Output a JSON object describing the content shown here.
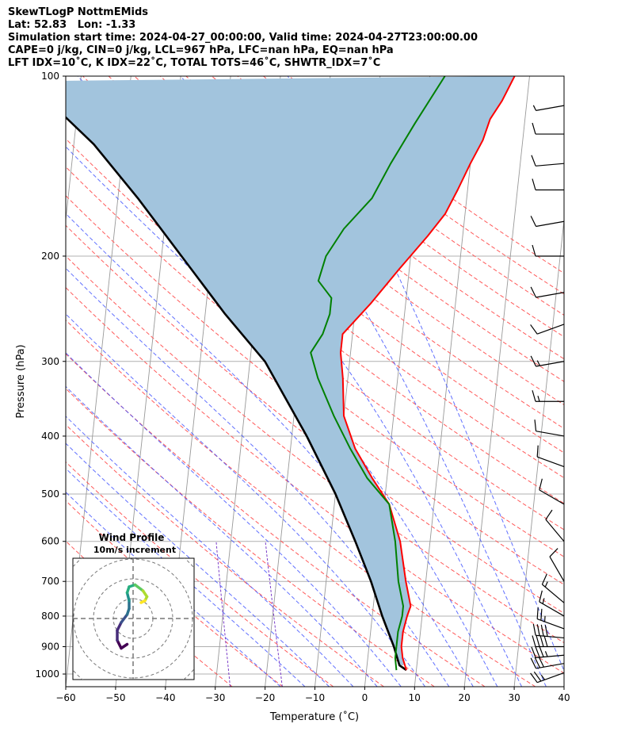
{
  "header": {
    "line1": "SkewTLogP NottmEMids",
    "line2": "Lat: 52.83   Lon: -1.33",
    "line3": "Simulation start time: 2024-04-27_00:00:00, Valid time: 2024-04-27T23:00:00.00",
    "line4": "CAPE=0 j/kg, CIN=0 j/kg, LCL=967 hPa, LFC=nan hPa, EQ=nan hPa",
    "line5": "LFT IDX=10˚C, K IDX=22˚C, TOTAL TOTS=46˚C, SHWTR_IDX=7˚C"
  },
  "chart_data": [
    {
      "type": "line",
      "subtype": "skew-t log-p",
      "xlabel": "Temperature (˚C)",
      "ylabel": "Pressure (hPa)",
      "xlim": [
        -60,
        40
      ],
      "ylim": [
        1050,
        100
      ],
      "yscale": "log",
      "x_ticks": [
        "−60",
        "−50",
        "−40",
        "−30",
        "−20",
        "−10",
        "0",
        "10",
        "20",
        "30",
        "40"
      ],
      "y_ticks": [
        100,
        200,
        300,
        400,
        500,
        600,
        700,
        800,
        900,
        1000
      ],
      "grid": true,
      "series": [
        {
          "role": "temperature",
          "color": "#ff0000",
          "points": [
            [
              8,
              985
            ],
            [
              7,
              940
            ],
            [
              6.5,
              900
            ],
            [
              6.5,
              850
            ],
            [
              7,
              800
            ],
            [
              7.5,
              770
            ],
            [
              6,
              700
            ],
            [
              4,
              600
            ],
            [
              1,
              520
            ],
            [
              -3,
              470
            ],
            [
              -7,
              420
            ],
            [
              -10,
              370
            ],
            [
              -11,
              320
            ],
            [
              -12,
              290
            ],
            [
              -12,
              270
            ],
            [
              -7,
              240
            ],
            [
              -2,
              210
            ],
            [
              3,
              185
            ],
            [
              6,
              170
            ],
            [
              8,
              155
            ],
            [
              10,
              140
            ],
            [
              12,
              128
            ],
            [
              13,
              118
            ],
            [
              15,
              110
            ],
            [
              17,
              100
            ]
          ]
        },
        {
          "role": "dewpoint",
          "color": "#008000",
          "points": [
            [
              6,
              985
            ],
            [
              5.5,
              940
            ],
            [
              5.5,
              900
            ],
            [
              5.5,
              850
            ],
            [
              6,
              800
            ],
            [
              6,
              770
            ],
            [
              4.5,
              700
            ],
            [
              3,
              600
            ],
            [
              1,
              520
            ],
            [
              -4,
              470
            ],
            [
              -8,
              420
            ],
            [
              -12,
              370
            ],
            [
              -16,
              320
            ],
            [
              -18,
              290
            ],
            [
              -16,
              270
            ],
            [
              -15,
              250
            ],
            [
              -15,
              235
            ],
            [
              -18,
              220
            ],
            [
              -17,
              200
            ],
            [
              -14,
              180
            ],
            [
              -9,
              160
            ],
            [
              -6,
              140
            ],
            [
              -2,
              120
            ],
            [
              3,
              100
            ]
          ]
        },
        {
          "role": "parcel",
          "color": "#000000",
          "points": [
            [
              8,
              985
            ],
            [
              6.5,
              967
            ],
            [
              5,
              900
            ],
            [
              2,
              800
            ],
            [
              -1,
              700
            ],
            [
              -5,
              600
            ],
            [
              -10,
              500
            ],
            [
              -17,
              400
            ],
            [
              -27,
              300
            ],
            [
              -36,
              250
            ],
            [
              -46,
              200
            ],
            [
              -56,
              160
            ],
            [
              -66,
              130
            ],
            [
              -76,
              110
            ],
            [
              -84,
              100
            ]
          ]
        }
      ],
      "shaded_region": {
        "between": [
          "parcel",
          "temperature"
        ],
        "color": "#a2c4dd"
      },
      "dry_adiabat_color": "#ff5a5a",
      "moist_adiabat_color": "#3a4cff",
      "mixing_ratio_color": "#7a3cc8",
      "isotherm_color": "#999999",
      "wind_barbs": [
        {
          "p": 995,
          "spd": 25,
          "dir": 250
        },
        {
          "p": 960,
          "spd": 30,
          "dir": 260
        },
        {
          "p": 930,
          "spd": 35,
          "dir": 265
        },
        {
          "p": 900,
          "spd": 40,
          "dir": 270
        },
        {
          "p": 870,
          "spd": 40,
          "dir": 275
        },
        {
          "p": 840,
          "spd": 25,
          "dir": 290
        },
        {
          "p": 800,
          "spd": 15,
          "dir": 300
        },
        {
          "p": 760,
          "spd": 15,
          "dir": 310
        },
        {
          "p": 700,
          "spd": 10,
          "dir": 330
        },
        {
          "p": 600,
          "spd": 10,
          "dir": 320
        },
        {
          "p": 520,
          "spd": 10,
          "dir": 300
        },
        {
          "p": 450,
          "spd": 10,
          "dir": 290
        },
        {
          "p": 400,
          "spd": 10,
          "dir": 280
        },
        {
          "p": 350,
          "spd": 15,
          "dir": 270
        },
        {
          "p": 300,
          "spd": 15,
          "dir": 260
        },
        {
          "p": 260,
          "spd": 10,
          "dir": 250
        },
        {
          "p": 230,
          "spd": 10,
          "dir": 260
        },
        {
          "p": 200,
          "spd": 10,
          "dir": 270
        },
        {
          "p": 175,
          "spd": 10,
          "dir": 260
        },
        {
          "p": 155,
          "spd": 10,
          "dir": 270
        },
        {
          "p": 140,
          "spd": 10,
          "dir": 265
        },
        {
          "p": 125,
          "spd": 10,
          "dir": 270
        },
        {
          "p": 112,
          "spd": 5,
          "dir": 260
        }
      ]
    },
    {
      "type": "hodograph",
      "title": "Wind Profile",
      "subtitle": "10m/s increment",
      "ring_step_ms": 10,
      "path": [
        [
          -3,
          -13
        ],
        [
          -6,
          -15
        ],
        [
          -8,
          -11
        ],
        [
          -8,
          -6
        ],
        [
          -6,
          -2
        ],
        [
          -3,
          2
        ],
        [
          -2,
          5
        ],
        [
          -2,
          9
        ],
        [
          -3,
          13
        ],
        [
          -2,
          16
        ],
        [
          1,
          17
        ],
        [
          5,
          14
        ],
        [
          7,
          11
        ],
        [
          6,
          9
        ],
        [
          4,
          8
        ]
      ]
    }
  ]
}
